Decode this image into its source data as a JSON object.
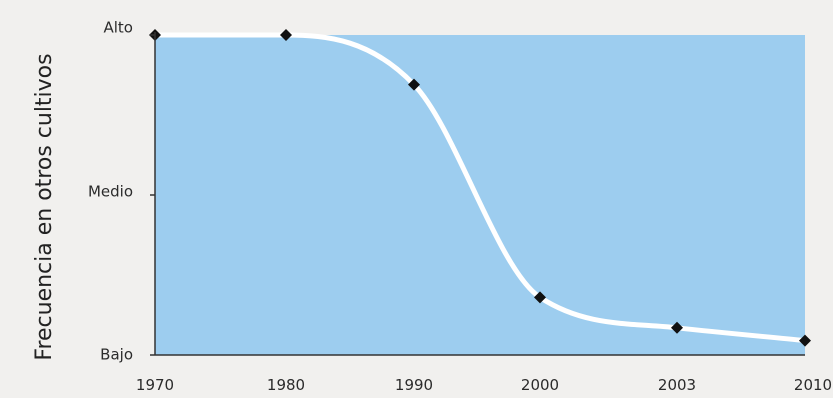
{
  "chart_data": {
    "type": "area",
    "ylabel": "Frecuencia en otros cultivos",
    "xlabel": "",
    "title": "",
    "x_ticks": [
      "1970",
      "1980",
      "1990",
      "2000",
      "2003",
      "2010"
    ],
    "y_ticks": [
      {
        "label": "Alto",
        "value": 2
      },
      {
        "label": "Medio",
        "value": 1
      },
      {
        "label": "Bajo",
        "value": 0
      }
    ],
    "ylim": [
      0,
      2
    ],
    "series": [
      {
        "points": [
          {
            "x": "1970",
            "y": 2.0
          },
          {
            "x": "1980",
            "y": 2.0
          },
          {
            "x": "1990",
            "y": 1.69
          },
          {
            "x": "2000",
            "y": 0.36
          },
          {
            "x": "2003",
            "y": 0.17
          },
          {
            "x": "2010",
            "y": 0.09
          }
        ]
      }
    ],
    "colors": {
      "area": "#9dcdef",
      "curve": "#ffffff",
      "marker": "#111111",
      "axis": "#333333"
    },
    "grid": false
  }
}
